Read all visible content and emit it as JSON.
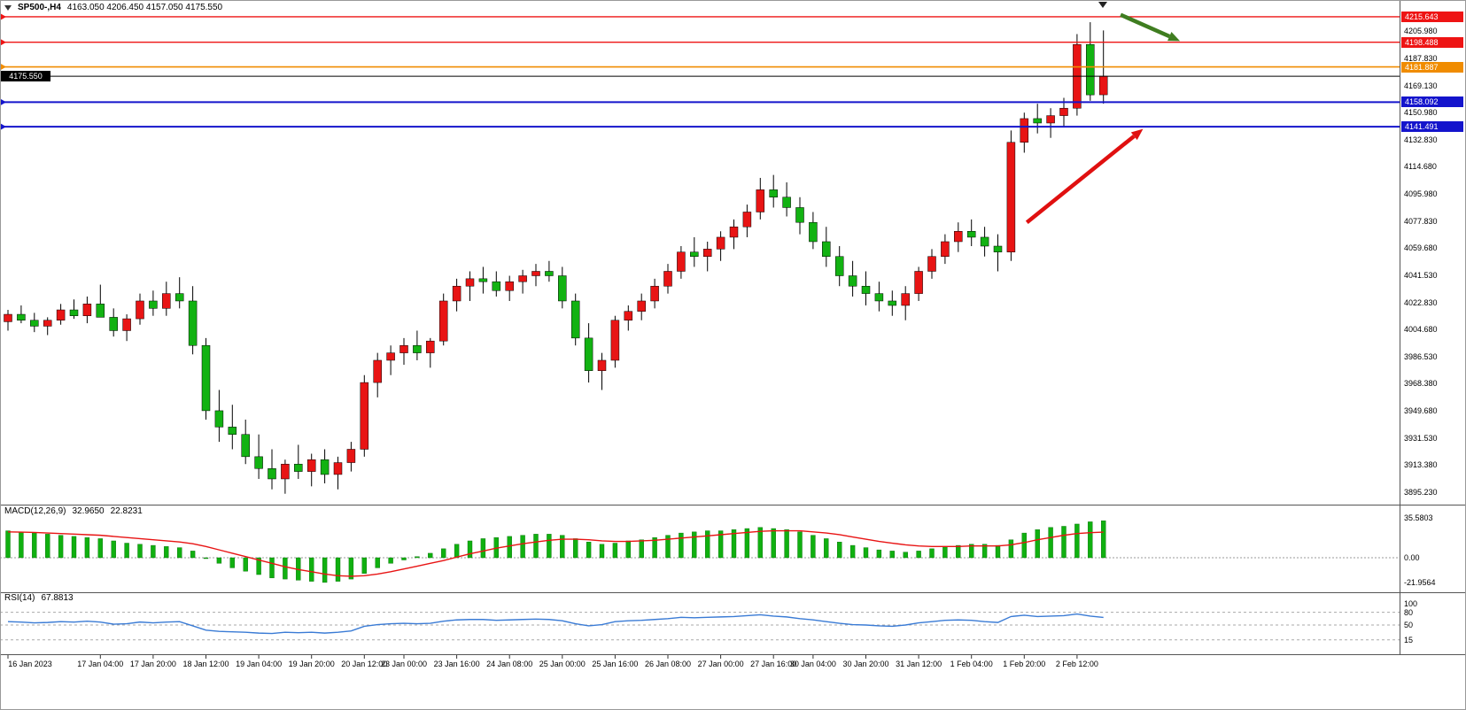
{
  "title": {
    "symbol": "SP500-,H4",
    "ohlc": "4163.050 4206.450 4157.050 4175.550"
  },
  "colors": {
    "bull_candle": "#e81414",
    "bear_candle": "#12b212",
    "macd_histogram": "#10b010",
    "macd_signal": "#e81414",
    "rsi_line": "#3a7bd5",
    "level_red": "#ee1414",
    "level_orange": "#f08c00",
    "level_blue": "#1414cc",
    "arrow_green": "#3f7d20",
    "arrow_red": "#e01010"
  },
  "price_axis_labels": [
    "4205.980",
    "4187.830",
    "4169.130",
    "4150.980",
    "4132.830",
    "4114.680",
    "4095.980",
    "4077.830",
    "4059.680",
    "4041.530",
    "4022.830",
    "4004.680",
    "3986.530",
    "3968.380",
    "3949.680",
    "3931.530",
    "3913.380",
    "3895.230"
  ],
  "chart_data": {
    "type": "candlestick",
    "symbol": "SP500-",
    "timeframe": "H4",
    "current_price_label": "4175.550",
    "current_bar": {
      "open": 4163.05,
      "high": 4206.45,
      "low": 4157.05,
      "close": 4175.55
    },
    "price_range_visible": [
      3886,
      4221
    ],
    "candles_ohlc": [
      [
        4010,
        4018,
        4004,
        4015
      ],
      [
        4015,
        4021,
        4009,
        4011
      ],
      [
        4011,
        4016,
        4003,
        4007
      ],
      [
        4007,
        4013,
        4001,
        4011
      ],
      [
        4011,
        4022,
        4008,
        4018
      ],
      [
        4018,
        4025,
        4012,
        4014
      ],
      [
        4014,
        4027,
        4009,
        4022
      ],
      [
        4022,
        4035,
        4016,
        4013
      ],
      [
        4013,
        4019,
        4000,
        4004
      ],
      [
        4004,
        4015,
        3997,
        4012
      ],
      [
        4012,
        4029,
        4008,
        4024
      ],
      [
        4024,
        4031,
        4014,
        4019
      ],
      [
        4019,
        4037,
        4014,
        4029
      ],
      [
        4029,
        4040,
        4019,
        4024
      ],
      [
        4024,
        4034,
        3988,
        3994
      ],
      [
        3994,
        3999,
        3944,
        3950
      ],
      [
        3950,
        3964,
        3929,
        3939
      ],
      [
        3939,
        3954,
        3924,
        3934
      ],
      [
        3934,
        3944,
        3914,
        3919
      ],
      [
        3919,
        3934,
        3904,
        3911
      ],
      [
        3911,
        3924,
        3897,
        3904
      ],
      [
        3904,
        3917,
        3894,
        3914
      ],
      [
        3914,
        3927,
        3904,
        3909
      ],
      [
        3909,
        3921,
        3899,
        3917
      ],
      [
        3917,
        3924,
        3901,
        3907
      ],
      [
        3907,
        3919,
        3897,
        3915
      ],
      [
        3915,
        3929,
        3909,
        3924
      ],
      [
        3924,
        3974,
        3919,
        3969
      ],
      [
        3969,
        3989,
        3959,
        3984
      ],
      [
        3984,
        3994,
        3974,
        3989
      ],
      [
        3989,
        3999,
        3981,
        3994
      ],
      [
        3994,
        4004,
        3984,
        3989
      ],
      [
        3989,
        3999,
        3979,
        3997
      ],
      [
        3997,
        4029,
        3994,
        4024
      ],
      [
        4024,
        4039,
        4017,
        4034
      ],
      [
        4034,
        4044,
        4024,
        4039
      ],
      [
        4039,
        4047,
        4029,
        4037
      ],
      [
        4037,
        4044,
        4027,
        4031
      ],
      [
        4031,
        4041,
        4024,
        4037
      ],
      [
        4037,
        4045,
        4029,
        4041
      ],
      [
        4041,
        4049,
        4034,
        4044
      ],
      [
        4044,
        4051,
        4037,
        4041
      ],
      [
        4041,
        4047,
        4019,
        4024
      ],
      [
        4024,
        4029,
        3994,
        3999
      ],
      [
        3999,
        4009,
        3969,
        3977
      ],
      [
        3977,
        3989,
        3964,
        3984
      ],
      [
        3984,
        4014,
        3979,
        4011
      ],
      [
        4011,
        4021,
        4004,
        4017
      ],
      [
        4017,
        4029,
        4011,
        4024
      ],
      [
        4024,
        4039,
        4019,
        4034
      ],
      [
        4034,
        4049,
        4029,
        4044
      ],
      [
        4044,
        4061,
        4039,
        4057
      ],
      [
        4057,
        4067,
        4047,
        4054
      ],
      [
        4054,
        4064,
        4044,
        4059
      ],
      [
        4059,
        4071,
        4051,
        4067
      ],
      [
        4067,
        4079,
        4059,
        4074
      ],
      [
        4074,
        4089,
        4067,
        4084
      ],
      [
        4084,
        4107,
        4079,
        4099
      ],
      [
        4099,
        4109,
        4087,
        4094
      ],
      [
        4094,
        4104,
        4081,
        4087
      ],
      [
        4087,
        4094,
        4069,
        4077
      ],
      [
        4077,
        4084,
        4059,
        4064
      ],
      [
        4064,
        4074,
        4047,
        4054
      ],
      [
        4054,
        4061,
        4034,
        4041
      ],
      [
        4041,
        4051,
        4027,
        4034
      ],
      [
        4034,
        4044,
        4021,
        4029
      ],
      [
        4029,
        4037,
        4017,
        4024
      ],
      [
        4024,
        4031,
        4014,
        4021
      ],
      [
        4021,
        4034,
        4011,
        4029
      ],
      [
        4029,
        4047,
        4024,
        4044
      ],
      [
        4044,
        4059,
        4039,
        4054
      ],
      [
        4054,
        4069,
        4049,
        4064
      ],
      [
        4064,
        4077,
        4057,
        4071
      ],
      [
        4071,
        4079,
        4061,
        4067
      ],
      [
        4067,
        4074,
        4054,
        4061
      ],
      [
        4061,
        4069,
        4044,
        4057
      ],
      [
        4057,
        4139,
        4051,
        4131
      ],
      [
        4131,
        4151,
        4124,
        4147
      ],
      [
        4147,
        4157,
        4137,
        4144
      ],
      [
        4144,
        4154,
        4134,
        4149
      ],
      [
        4149,
        4161,
        4141,
        4154
      ],
      [
        4154,
        4204,
        4149,
        4197
      ],
      [
        4197,
        4212,
        4159,
        4163
      ],
      [
        4163.05,
        4206.45,
        4157.05,
        4175.55
      ]
    ],
    "levels": [
      {
        "value": 4215.643,
        "label": "4215.643",
        "color": "#ee1414",
        "width": 1.4
      },
      {
        "value": 4198.488,
        "label": "4198.488",
        "color": "#ee1414",
        "width": 1.4
      },
      {
        "value": 4181.887,
        "label": "4181.887",
        "color": "#f08c00",
        "width": 1.6
      },
      {
        "value": 4175.55,
        "label": "4175.550",
        "color": "#000000",
        "width": 1,
        "badge_side": "left"
      },
      {
        "value": 4158.092,
        "label": "4158.092",
        "color": "#1414cc",
        "width": 2
      },
      {
        "value": 4141.491,
        "label": "4141.491",
        "color": "#1414cc",
        "width": 2
      }
    ],
    "annotations": {
      "arrows": [
        {
          "name": "down-right-arrow",
          "from": [
            84.3,
            4217
          ],
          "to": [
            88.8,
            4199.3
          ],
          "color": "#3f7d20"
        },
        {
          "name": "up-right-arrow",
          "from": [
            77.2,
            4077
          ],
          "to": [
            86.0,
            4140
          ],
          "color": "#e01010"
        }
      ]
    },
    "indicators": {
      "macd": {
        "label": "MACD(12,26,9)",
        "main_value": "32.9650",
        "signal_value": "22.8231",
        "scale": [
          "35.5803",
          "0.00",
          "-21.9564"
        ],
        "histogram": [
          24,
          23,
          22,
          21,
          20,
          19,
          18,
          17,
          15,
          13,
          12,
          11,
          10,
          9,
          6,
          0,
          -5,
          -9,
          -12,
          -15,
          -18,
          -19,
          -20,
          -21,
          -22,
          -21,
          -19,
          -14,
          -9,
          -5,
          -2,
          1,
          4,
          8,
          12,
          15,
          17,
          18,
          19,
          20,
          21,
          21,
          20,
          17,
          14,
          12,
          13,
          15,
          16,
          18,
          20,
          22,
          23,
          24,
          24,
          25,
          26,
          27,
          26,
          25,
          23,
          20,
          17,
          14,
          11,
          9,
          7,
          6,
          5,
          6,
          8,
          10,
          11,
          12,
          12,
          11,
          16,
          22,
          25,
          27,
          28,
          30,
          32,
          32.965
        ],
        "signal": [
          23,
          22.8,
          22.5,
          22,
          21.5,
          21,
          20.5,
          20,
          19,
          18,
          17,
          16,
          15,
          14,
          12.5,
          10,
          7,
          4,
          1,
          -2,
          -5,
          -8,
          -10.5,
          -12.5,
          -14.5,
          -16,
          -16.5,
          -16,
          -14.5,
          -12.5,
          -10,
          -7.5,
          -5,
          -2.5,
          0.5,
          3.5,
          6,
          8.5,
          10.5,
          12.5,
          14,
          15.5,
          16.5,
          16.5,
          16,
          15,
          14.5,
          14.5,
          15,
          15.5,
          16.5,
          17.5,
          18.5,
          19.5,
          20.5,
          21.5,
          22.5,
          23.5,
          24,
          24,
          24,
          23,
          22,
          20.5,
          18.5,
          16.5,
          14.5,
          13,
          11.5,
          10.5,
          10,
          10,
          10,
          10.5,
          10.5,
          10.5,
          11.5,
          13.5,
          16,
          18,
          20,
          21.5,
          22.3,
          22.823
        ]
      },
      "rsi": {
        "label": "RSI(14)",
        "value": "67.8813",
        "levels": [
          "100",
          "80",
          "50",
          "15"
        ],
        "values": [
          58,
          57,
          55,
          56,
          58,
          57,
          59,
          57,
          52,
          53,
          57,
          55,
          57,
          58,
          48,
          38,
          35,
          34,
          33,
          31,
          30,
          33,
          32,
          33,
          31,
          33,
          36,
          47,
          51,
          53,
          54,
          53,
          54,
          59,
          62,
          63,
          63,
          61,
          62,
          63,
          64,
          63,
          60,
          53,
          48,
          51,
          58,
          60,
          61,
          63,
          65,
          68,
          67,
          68,
          69,
          70,
          72,
          74,
          71,
          69,
          65,
          62,
          58,
          54,
          51,
          50,
          48,
          47,
          50,
          55,
          58,
          61,
          62,
          61,
          58,
          56,
          70,
          73,
          70,
          71,
          72,
          76,
          71,
          67.88
        ]
      }
    },
    "time_labels": [
      {
        "i": 0,
        "t": "16 Jan 2023"
      },
      {
        "i": 7,
        "t": "17 Jan 04:00"
      },
      {
        "i": 11,
        "t": "17 Jan 20:00"
      },
      {
        "i": 15,
        "t": "18 Jan 12:00"
      },
      {
        "i": 19,
        "t": "19 Jan 04:00"
      },
      {
        "i": 23,
        "t": "19 Jan 20:00"
      },
      {
        "i": 27,
        "t": "20 Jan 12:00"
      },
      {
        "i": 30,
        "t": "23 Jan 00:00"
      },
      {
        "i": 34,
        "t": "23 Jan 16:00"
      },
      {
        "i": 38,
        "t": "24 Jan 08:00"
      },
      {
        "i": 42,
        "t": "25 Jan 00:00"
      },
      {
        "i": 46,
        "t": "25 Jan 16:00"
      },
      {
        "i": 50,
        "t": "26 Jan 08:00"
      },
      {
        "i": 54,
        "t": "27 Jan 00:00"
      },
      {
        "i": 58,
        "t": "27 Jan 16:00"
      },
      {
        "i": 61,
        "t": "30 Jan 04:00"
      },
      {
        "i": 65,
        "t": "30 Jan 20:00"
      },
      {
        "i": 69,
        "t": "31 Jan 12:00"
      },
      {
        "i": 73,
        "t": "1 Feb 04:00"
      },
      {
        "i": 77,
        "t": "1 Feb 20:00"
      },
      {
        "i": 81,
        "t": "2 Feb 12:00"
      }
    ]
  }
}
